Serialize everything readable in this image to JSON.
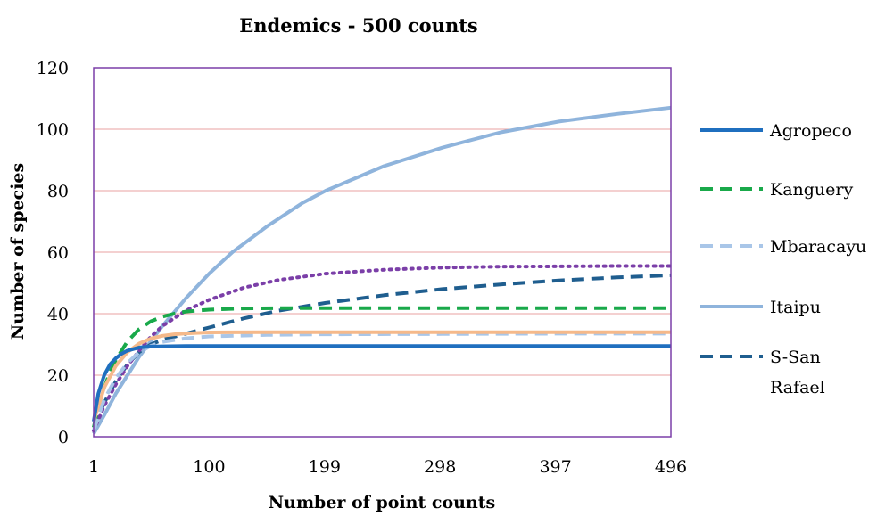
{
  "chart_data": {
    "type": "line",
    "title": "Endemics - 500 counts",
    "xlabel": "Number of point counts",
    "ylabel": "Number of species",
    "xlim": [
      1,
      496
    ],
    "ylim": [
      0,
      120
    ],
    "x_ticks": [
      1,
      100,
      199,
      298,
      397,
      496
    ],
    "y_ticks": [
      0,
      20,
      40,
      60,
      80,
      100,
      120
    ],
    "grid": "horizontal",
    "legend_position": "right",
    "series": [
      {
        "name": "Agropeco",
        "color": "#1f6fbf",
        "dash": "solid",
        "x": [
          1,
          5,
          10,
          15,
          20,
          25,
          30,
          40,
          50,
          60,
          80,
          100,
          150,
          200,
          300,
          400,
          496
        ],
        "y": [
          5,
          14,
          20,
          23.5,
          25.5,
          27,
          28,
          29,
          29.3,
          29.4,
          29.5,
          29.5,
          29.5,
          29.5,
          29.5,
          29.5,
          29.5
        ]
      },
      {
        "name": "Kanguery",
        "color": "#19a94a",
        "dash": "dashed",
        "x": [
          1,
          5,
          10,
          15,
          20,
          30,
          40,
          50,
          60,
          70,
          80,
          100,
          130,
          160,
          200,
          300,
          400,
          496
        ],
        "y": [
          3,
          10,
          16,
          21,
          25,
          31,
          35,
          37.5,
          39,
          40,
          40.7,
          41.3,
          41.7,
          41.8,
          41.8,
          41.8,
          41.8,
          41.8
        ]
      },
      {
        "name": "Mbaracayu",
        "color": "#a9c6e8",
        "dash": "dashed",
        "x": [
          1,
          10,
          20,
          30,
          40,
          50,
          60,
          80,
          100,
          150,
          200,
          300,
          400,
          496
        ],
        "y": [
          2,
          12,
          19,
          24,
          27.5,
          29.5,
          30.8,
          32,
          32.6,
          33.1,
          33.3,
          33.4,
          33.5,
          33.5
        ]
      },
      {
        "name": "Itaipu",
        "color": "#8fb4dc",
        "dash": "solid",
        "x": [
          1,
          10,
          20,
          30,
          40,
          50,
          60,
          70,
          80,
          100,
          120,
          150,
          180,
          200,
          250,
          300,
          350,
          400,
          450,
          496
        ],
        "y": [
          1,
          7,
          14,
          20,
          26,
          31,
          36,
          40.5,
          45,
          53,
          60,
          68.5,
          76,
          80,
          88,
          94,
          99,
          102.5,
          105,
          107
        ]
      },
      {
        "name": "S-San Rafael",
        "color": "#1f5e8f",
        "dash": "dashed",
        "x": [
          1,
          10,
          20,
          30,
          40,
          50,
          60,
          80,
          100,
          130,
          160,
          200,
          250,
          300,
          350,
          400,
          450,
          496
        ],
        "y": [
          3,
          11,
          18,
          23.5,
          27.5,
          30,
          31.5,
          33.5,
          35.5,
          38.5,
          41,
          43.5,
          46,
          48,
          49.5,
          50.8,
          51.8,
          52.5
        ]
      },
      {
        "color": "#7b3fa8",
        "dash": "dotted",
        "x": [
          1,
          10,
          20,
          30,
          40,
          50,
          60,
          80,
          100,
          130,
          160,
          200,
          250,
          300,
          350,
          400,
          450,
          496
        ],
        "y": [
          2,
          10,
          17,
          23,
          28,
          32.5,
          36,
          41,
          44.5,
          48.5,
          51,
          53,
          54.3,
          55,
          55.3,
          55.4,
          55.5,
          55.5
        ]
      },
      {
        "color": "#f5b98a",
        "dash": "solid",
        "x": [
          1,
          10,
          20,
          30,
          40,
          50,
          60,
          70,
          80,
          100,
          150,
          200,
          300,
          400,
          496
        ],
        "y": [
          5,
          16,
          23,
          27.5,
          30.3,
          31.9,
          32.8,
          33.3,
          33.6,
          33.9,
          34,
          34,
          34,
          34,
          34
        ]
      }
    ]
  }
}
